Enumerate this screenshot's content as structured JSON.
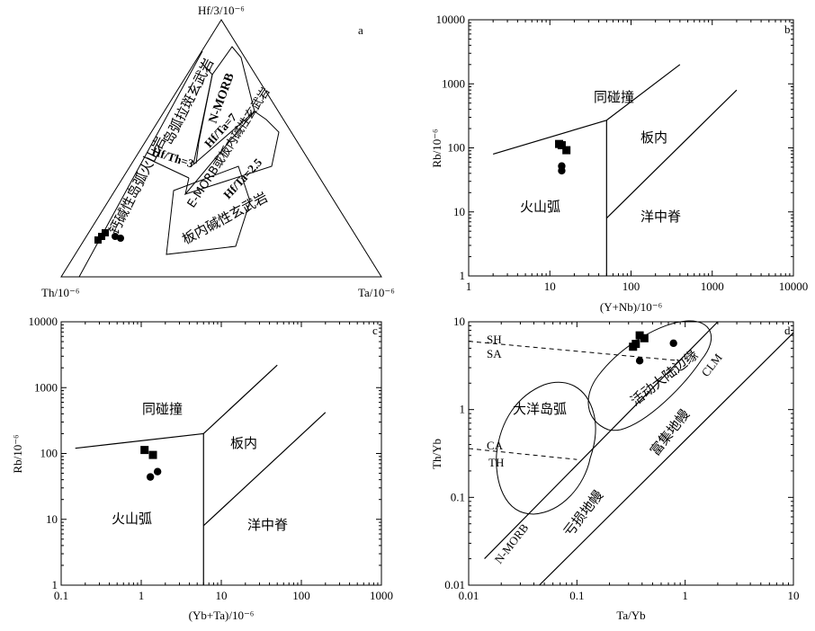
{
  "chart_data": [
    {
      "panel": "a",
      "type": "ternary",
      "apex_labels": {
        "top": "Hf/3/10⁻⁶",
        "left": "Th/10⁻⁶",
        "right": "Ta/10⁻⁶"
      },
      "field_labels": [
        "岛弧拉斑玄武岩",
        "N-MORB",
        "Hf/Th=3",
        "Hf/Ta=7",
        "E-MORB或板内碱性玄武岩",
        "Hf/Ta=2.5",
        "钙碱性岛弧火山岩",
        "板内碱性玄武岩"
      ],
      "series": [
        {
          "marker": "square",
          "points": []
        },
        {
          "marker": "circle",
          "points": []
        }
      ]
    },
    {
      "panel": "b",
      "type": "scatter",
      "xlabel": "(Y+Nb)/10⁻⁶",
      "ylabel": "Rb/10⁻⁶",
      "xscale": "log",
      "yscale": "log",
      "xlim": [
        1,
        10000
      ],
      "ylim": [
        1,
        10000
      ],
      "xticks": [
        "1",
        "10",
        "100",
        "1000",
        "10000"
      ],
      "yticks": [
        "1",
        "10",
        "100",
        "1000",
        "10000"
      ],
      "field_labels": [
        "同碰撞",
        "板内",
        "火山弧",
        "洋中脊"
      ],
      "series": [
        {
          "marker": "square",
          "points": [
            [
              13,
              115
            ],
            [
              14,
              110
            ],
            [
              16,
              92
            ]
          ]
        },
        {
          "marker": "circle",
          "points": [
            [
              14,
              52
            ],
            [
              14,
              44
            ]
          ]
        }
      ]
    },
    {
      "panel": "c",
      "type": "scatter",
      "xlabel": "(Yb+Ta)/10⁻⁶",
      "ylabel": "Rb/10⁻⁶",
      "xscale": "log",
      "yscale": "log",
      "xlim": [
        0.1,
        1000
      ],
      "ylim": [
        1,
        10000
      ],
      "xticks": [
        "0.1",
        "1",
        "10",
        "100",
        "1000"
      ],
      "yticks": [
        "1",
        "10",
        "100",
        "1000",
        "10000"
      ],
      "field_labels": [
        "同碰撞",
        "板内",
        "火山弧",
        "洋中脊"
      ],
      "series": [
        {
          "marker": "square",
          "points": [
            [
              1.1,
              113
            ],
            [
              1.4,
              95
            ]
          ]
        },
        {
          "marker": "circle",
          "points": [
            [
              1.3,
              44
            ],
            [
              1.6,
              53
            ]
          ]
        }
      ]
    },
    {
      "panel": "d",
      "type": "scatter",
      "xlabel": "Ta/Yb",
      "ylabel": "Th/Yb",
      "xscale": "log",
      "yscale": "log",
      "xlim": [
        0.01,
        10
      ],
      "ylim": [
        0.01,
        10
      ],
      "xticks": [
        "0.01",
        "0.1",
        "1",
        "10"
      ],
      "yticks": [
        "0.01",
        "0.1",
        "1",
        "10"
      ],
      "field_labels": [
        "SH",
        "SA",
        "CA",
        "TH",
        "大洋岛弧",
        "活动大陆边缘",
        "CLM",
        "富集地幔",
        "亏损地幔",
        "N-MORB"
      ],
      "series": [
        {
          "marker": "square",
          "points": [
            [
              0.33,
              5.2
            ],
            [
              0.35,
              5.6
            ],
            [
              0.38,
              7.0
            ],
            [
              0.42,
              6.5
            ]
          ]
        },
        {
          "marker": "circle",
          "points": [
            [
              0.38,
              3.6
            ],
            [
              0.78,
              5.7
            ]
          ]
        }
      ]
    }
  ],
  "panel_letters": [
    "a",
    "b",
    "c",
    "d"
  ]
}
